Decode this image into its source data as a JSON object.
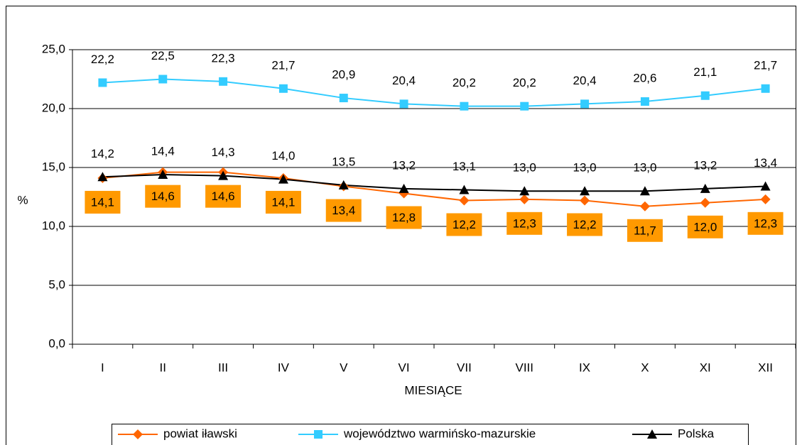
{
  "chart_data": {
    "type": "line",
    "x_label": "MIESIĄCE",
    "y_label": "%",
    "categories": [
      "I",
      "II",
      "III",
      "IV",
      "V",
      "VI",
      "VII",
      "VIII",
      "IX",
      "X",
      "XI",
      "XII"
    ],
    "series": [
      {
        "name": "powiat iławski",
        "color": "#ff6600",
        "marker": "diamond",
        "values": [
          14.1,
          14.6,
          14.6,
          14.1,
          13.4,
          12.8,
          12.2,
          12.3,
          12.2,
          11.7,
          12.0,
          12.3
        ],
        "value_labels": [
          "14,1",
          "14,6",
          "14,6",
          "14,1",
          "13,4",
          "12,8",
          "12,2",
          "12,3",
          "12,2",
          "11,7",
          "12,0",
          "12,3"
        ]
      },
      {
        "name": "województwo warmińsko-mazurskie",
        "color": "#33ccff",
        "marker": "square",
        "values": [
          22.2,
          22.5,
          22.3,
          21.7,
          20.9,
          20.4,
          20.2,
          20.2,
          20.4,
          20.6,
          21.1,
          21.7
        ],
        "value_labels": [
          "22,2",
          "22,5",
          "22,3",
          "21,7",
          "20,9",
          "20,4",
          "20,2",
          "20,2",
          "20,4",
          "20,6",
          "21,1",
          "21,7"
        ]
      },
      {
        "name": "Polska",
        "color": "#000000",
        "marker": "triangle",
        "values": [
          14.2,
          14.4,
          14.3,
          14.0,
          13.5,
          13.2,
          13.1,
          13.0,
          13.0,
          13.0,
          13.2,
          13.4
        ],
        "value_labels": [
          "14,2",
          "14,4",
          "14,3",
          "14,0",
          "13,5",
          "13,2",
          "13,1",
          "13,0",
          "13,0",
          "13,0",
          "13,2",
          "13,4"
        ]
      }
    ],
    "ylim": [
      0,
      25
    ],
    "yticks": [
      {
        "value": 0,
        "label": "0,0"
      },
      {
        "value": 5,
        "label": "5,0"
      },
      {
        "value": 10,
        "label": "10,0"
      },
      {
        "value": 15,
        "label": "15,0"
      },
      {
        "value": 20,
        "label": "20,0"
      },
      {
        "value": 25,
        "label": "25,0"
      }
    ],
    "grid": true,
    "legend": "bottom"
  }
}
